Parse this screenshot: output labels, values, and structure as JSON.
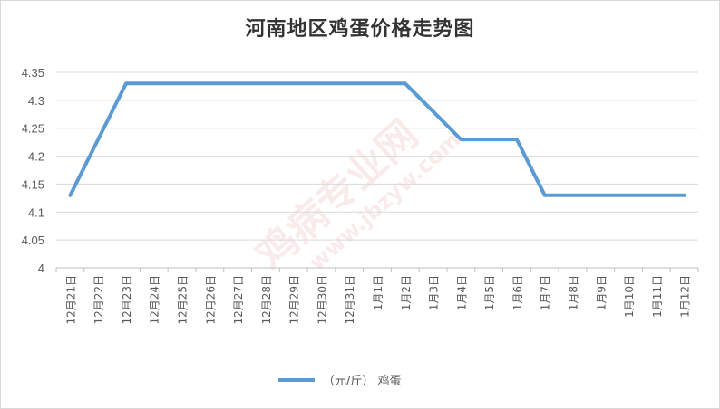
{
  "chart_data": {
    "type": "line",
    "title": "河南地区鸡蛋价格走势图",
    "categories": [
      "12月21日",
      "12月22日",
      "12月23日",
      "12月24日",
      "12月25日",
      "12月26日",
      "12月27日",
      "12月28日",
      "12月29日",
      "12月30日",
      "12月31日",
      "1月1日",
      "1月2日",
      "1月3日",
      "1月4日",
      "1月5日",
      "1月6日",
      "1月7日",
      "1月8日",
      "1月9日",
      "1月10日",
      "1月11日",
      "1月12日"
    ],
    "series": [
      {
        "name": "（元/斤） 鸡蛋",
        "color": "#5b9bd5",
        "values": [
          4.13,
          4.23,
          4.33,
          4.33,
          4.33,
          4.33,
          4.33,
          4.33,
          4.33,
          4.33,
          4.33,
          4.33,
          4.33,
          4.28,
          4.23,
          4.23,
          4.23,
          4.13,
          4.13,
          4.13,
          4.13,
          4.13,
          4.13
        ]
      }
    ],
    "ylim": [
      4,
      4.35
    ],
    "yticks": [
      "4",
      "4.05",
      "4.1",
      "4.15",
      "4.2",
      "4.25",
      "4.3",
      "4.35"
    ],
    "grid": true,
    "legend_position": "bottom"
  },
  "watermark": {
    "text_large": "鸡病专业网",
    "text_url": "www.jbzyw.com"
  }
}
